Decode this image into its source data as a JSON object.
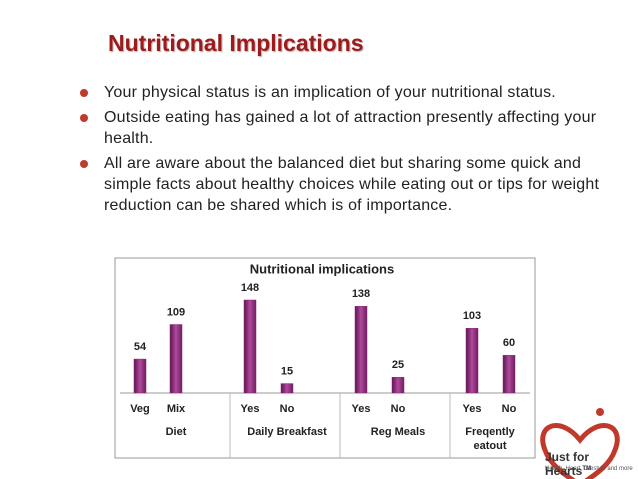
{
  "slide": {
    "title": "Nutritional Implications",
    "bullets": [
      "Your physical status is an implication of your nutritional status.",
      "Outside eating has gained a lot of attraction presently affecting your health.",
      "All are aware about the balanced diet but sharing some quick and simple facts about healthy choices while eating out or tips for weight reduction can be shared which is of importance."
    ],
    "logo": {
      "name": "Just for Hearts",
      "mark": "TM",
      "tagline": "Health, Heart, Lifestyle and more"
    }
  },
  "chart_data": {
    "type": "bar",
    "title": "Nutritional implications",
    "categories": [
      "Veg",
      "Mix",
      "Yes",
      "No",
      "Yes",
      "No",
      "Yes",
      "No"
    ],
    "groups": [
      "Diet",
      "Daily Breakfast",
      "Reg Meals",
      "Freqently eatout"
    ],
    "values": [
      54,
      109,
      148,
      15,
      138,
      25,
      103,
      60
    ],
    "color": "#8e2a7d"
  }
}
